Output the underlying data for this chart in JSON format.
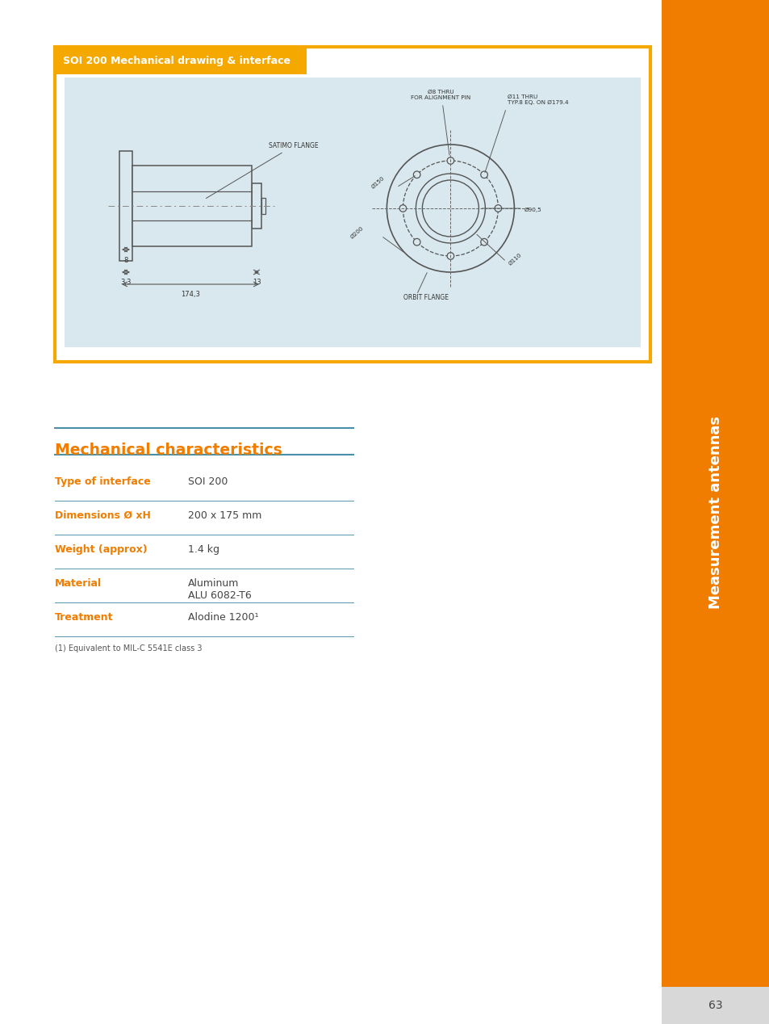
{
  "page_bg": "#ffffff",
  "orange_sidebar_color": "#F07D00",
  "orange_color": "#F07D00",
  "teal_color": "#4A8FA8",
  "gray_text_color": "#555555",
  "dark_gray": "#444444",
  "light_blue_bg": "#D8E8EE",
  "box_border_color": "#F5A800",
  "box_header_bg": "#F5A800",
  "box_header_text": "SOI 200 Mechanical drawing & interface",
  "mech_title": "Mechanical characteristics",
  "table_rows": [
    {
      "label": "Type of interface",
      "value": "SOI 200"
    },
    {
      "label": "Dimensions Ø xH",
      "value": "200 x 175 mm"
    },
    {
      "label": "Weight (approx)",
      "value": "1.4 kg"
    },
    {
      "label": "Material",
      "value": "Aluminum\nALU 6082-T6"
    },
    {
      "label": "Treatment",
      "value": "Alodine 1200¹"
    }
  ],
  "footnote": "(1) Equivalent to MIL-C 5541E class 3",
  "page_number": "63",
  "sidebar_text": "Measurement antennas",
  "drawing_labels": {
    "satimo_flange": "SATIMO FLANGE",
    "orbit_flange": "ORBIT FLANGE",
    "dim_8": "8",
    "dim_33": "3,3",
    "dim_13": "13",
    "dim_1743": "174,3",
    "d8_thru": "Ø8 THRU\nFOR ALIGNMENT PIN",
    "d11_thru": "Ø11 THRU\nTYP.8 EQ. ON Ø179.4",
    "d150": "Ø150",
    "d200": "Ø200",
    "d110": "Ø110",
    "d905": "Ø90,5"
  }
}
